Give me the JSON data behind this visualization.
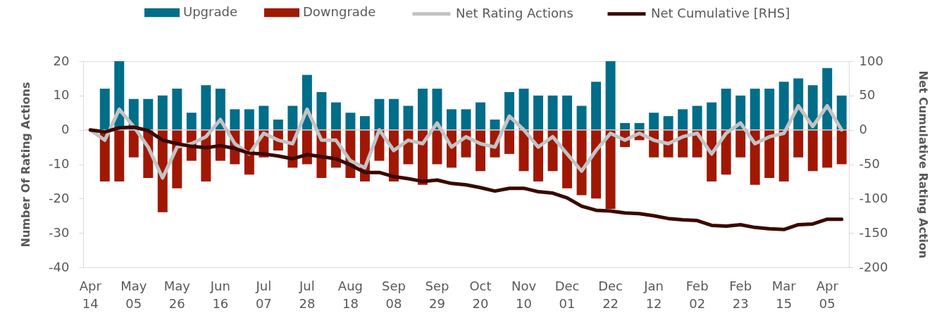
{
  "chart_data": {
    "type": "bar",
    "stacked": true,
    "legend": "top",
    "grid": false,
    "categories": [
      "Apr 14",
      null,
      null,
      "May 05",
      null,
      null,
      "May 26",
      null,
      null,
      "Jun 16",
      null,
      null,
      "Jul 07",
      null,
      null,
      "Jul 28",
      null,
      null,
      "Aug 18",
      null,
      null,
      "Sep 08",
      null,
      null,
      "Sep 29",
      null,
      null,
      "Oct 20",
      null,
      null,
      "Nov 10",
      null,
      null,
      "Dec 01",
      null,
      null,
      "Dec 22",
      null,
      null,
      "Jan 12",
      null,
      null,
      "Feb 02",
      null,
      null,
      "Feb 23",
      null,
      null,
      "Mar 15",
      null,
      null,
      "Apr 05",
      null
    ],
    "ylabel": "Number Of Rating Actions",
    "y2label": "Net Cumulative Rating Action",
    "ylim": [
      -40,
      20
    ],
    "yticks": [
      -40,
      -30,
      -20,
      -10,
      0,
      10,
      20
    ],
    "y2lim": [
      -200,
      100
    ],
    "y2ticks": [
      -200,
      -150,
      -100,
      -50,
      0,
      50,
      100
    ],
    "ref_lines": [
      {
        "axis": "y",
        "value": 0,
        "color": "#d9d9d9"
      }
    ],
    "series": [
      {
        "name": "Upgrade",
        "color": "#006d89",
        "values": [
          null,
          12,
          20,
          9,
          9,
          10,
          12,
          5,
          13,
          12,
          6,
          6,
          7,
          3,
          7,
          16,
          11,
          8,
          5,
          4,
          9,
          9,
          7,
          12,
          12,
          6,
          6,
          8,
          3,
          11,
          12,
          10,
          10,
          10,
          7,
          14,
          20,
          2,
          2,
          5,
          4,
          6,
          7,
          8,
          12,
          10,
          12,
          12,
          14,
          15,
          13,
          18,
          10
        ]
      },
      {
        "name": "Downgrade",
        "color": "#a01804",
        "values": [
          null,
          -15,
          -15,
          -8,
          -14,
          -24,
          -17,
          -9,
          -15,
          -9,
          -10,
          -13,
          -8,
          -6,
          -11,
          -10,
          -14,
          -11,
          -14,
          -15,
          -9,
          -15,
          -10,
          -16,
          -10,
          -11,
          -8,
          -12,
          -8,
          -7,
          -12,
          -15,
          -12,
          -17,
          -19,
          -20,
          -23,
          -5,
          -3,
          -8,
          -8,
          -8,
          -8,
          -15,
          -13,
          -8,
          -16,
          -14,
          -15,
          -8,
          -12,
          -11,
          -10
        ]
      },
      {
        "name": "Net Rating Actions",
        "type": "line",
        "color": "#c3c3c3",
        "values": [
          0,
          -3,
          6,
          1,
          -5,
          -14,
          -5,
          -4,
          -2,
          3,
          -4,
          -7,
          -1,
          -3,
          -4,
          6,
          -3,
          -3,
          -9,
          -11,
          0,
          -6,
          -3,
          -4,
          2,
          -5,
          -2,
          -4,
          -5,
          4,
          0,
          -5,
          -2,
          -7,
          -12,
          -6,
          -1,
          -3,
          -1,
          -3,
          -4,
          -2,
          -1,
          -7,
          -1,
          2,
          -4,
          -2,
          -1,
          7,
          1,
          7,
          0
        ]
      },
      {
        "name": "Net Cumulative [RHS]",
        "type": "line",
        "axis": "y2",
        "color": "#3a0800",
        "values": [
          0,
          -3,
          3,
          4,
          -1,
          -15,
          -20,
          -24,
          -26,
          -23,
          -27,
          -34,
          -35,
          -38,
          -42,
          -36,
          -39,
          -42,
          -51,
          -62,
          -62,
          -68,
          -71,
          -75,
          -73,
          -78,
          -80,
          -84,
          -89,
          -85,
          -85,
          -90,
          -92,
          -99,
          -111,
          -117,
          -118,
          -121,
          -122,
          -125,
          -129,
          -131,
          -132,
          -139,
          -140,
          -138,
          -142,
          -144,
          -145,
          -138,
          -137,
          -130,
          -130
        ]
      }
    ]
  }
}
